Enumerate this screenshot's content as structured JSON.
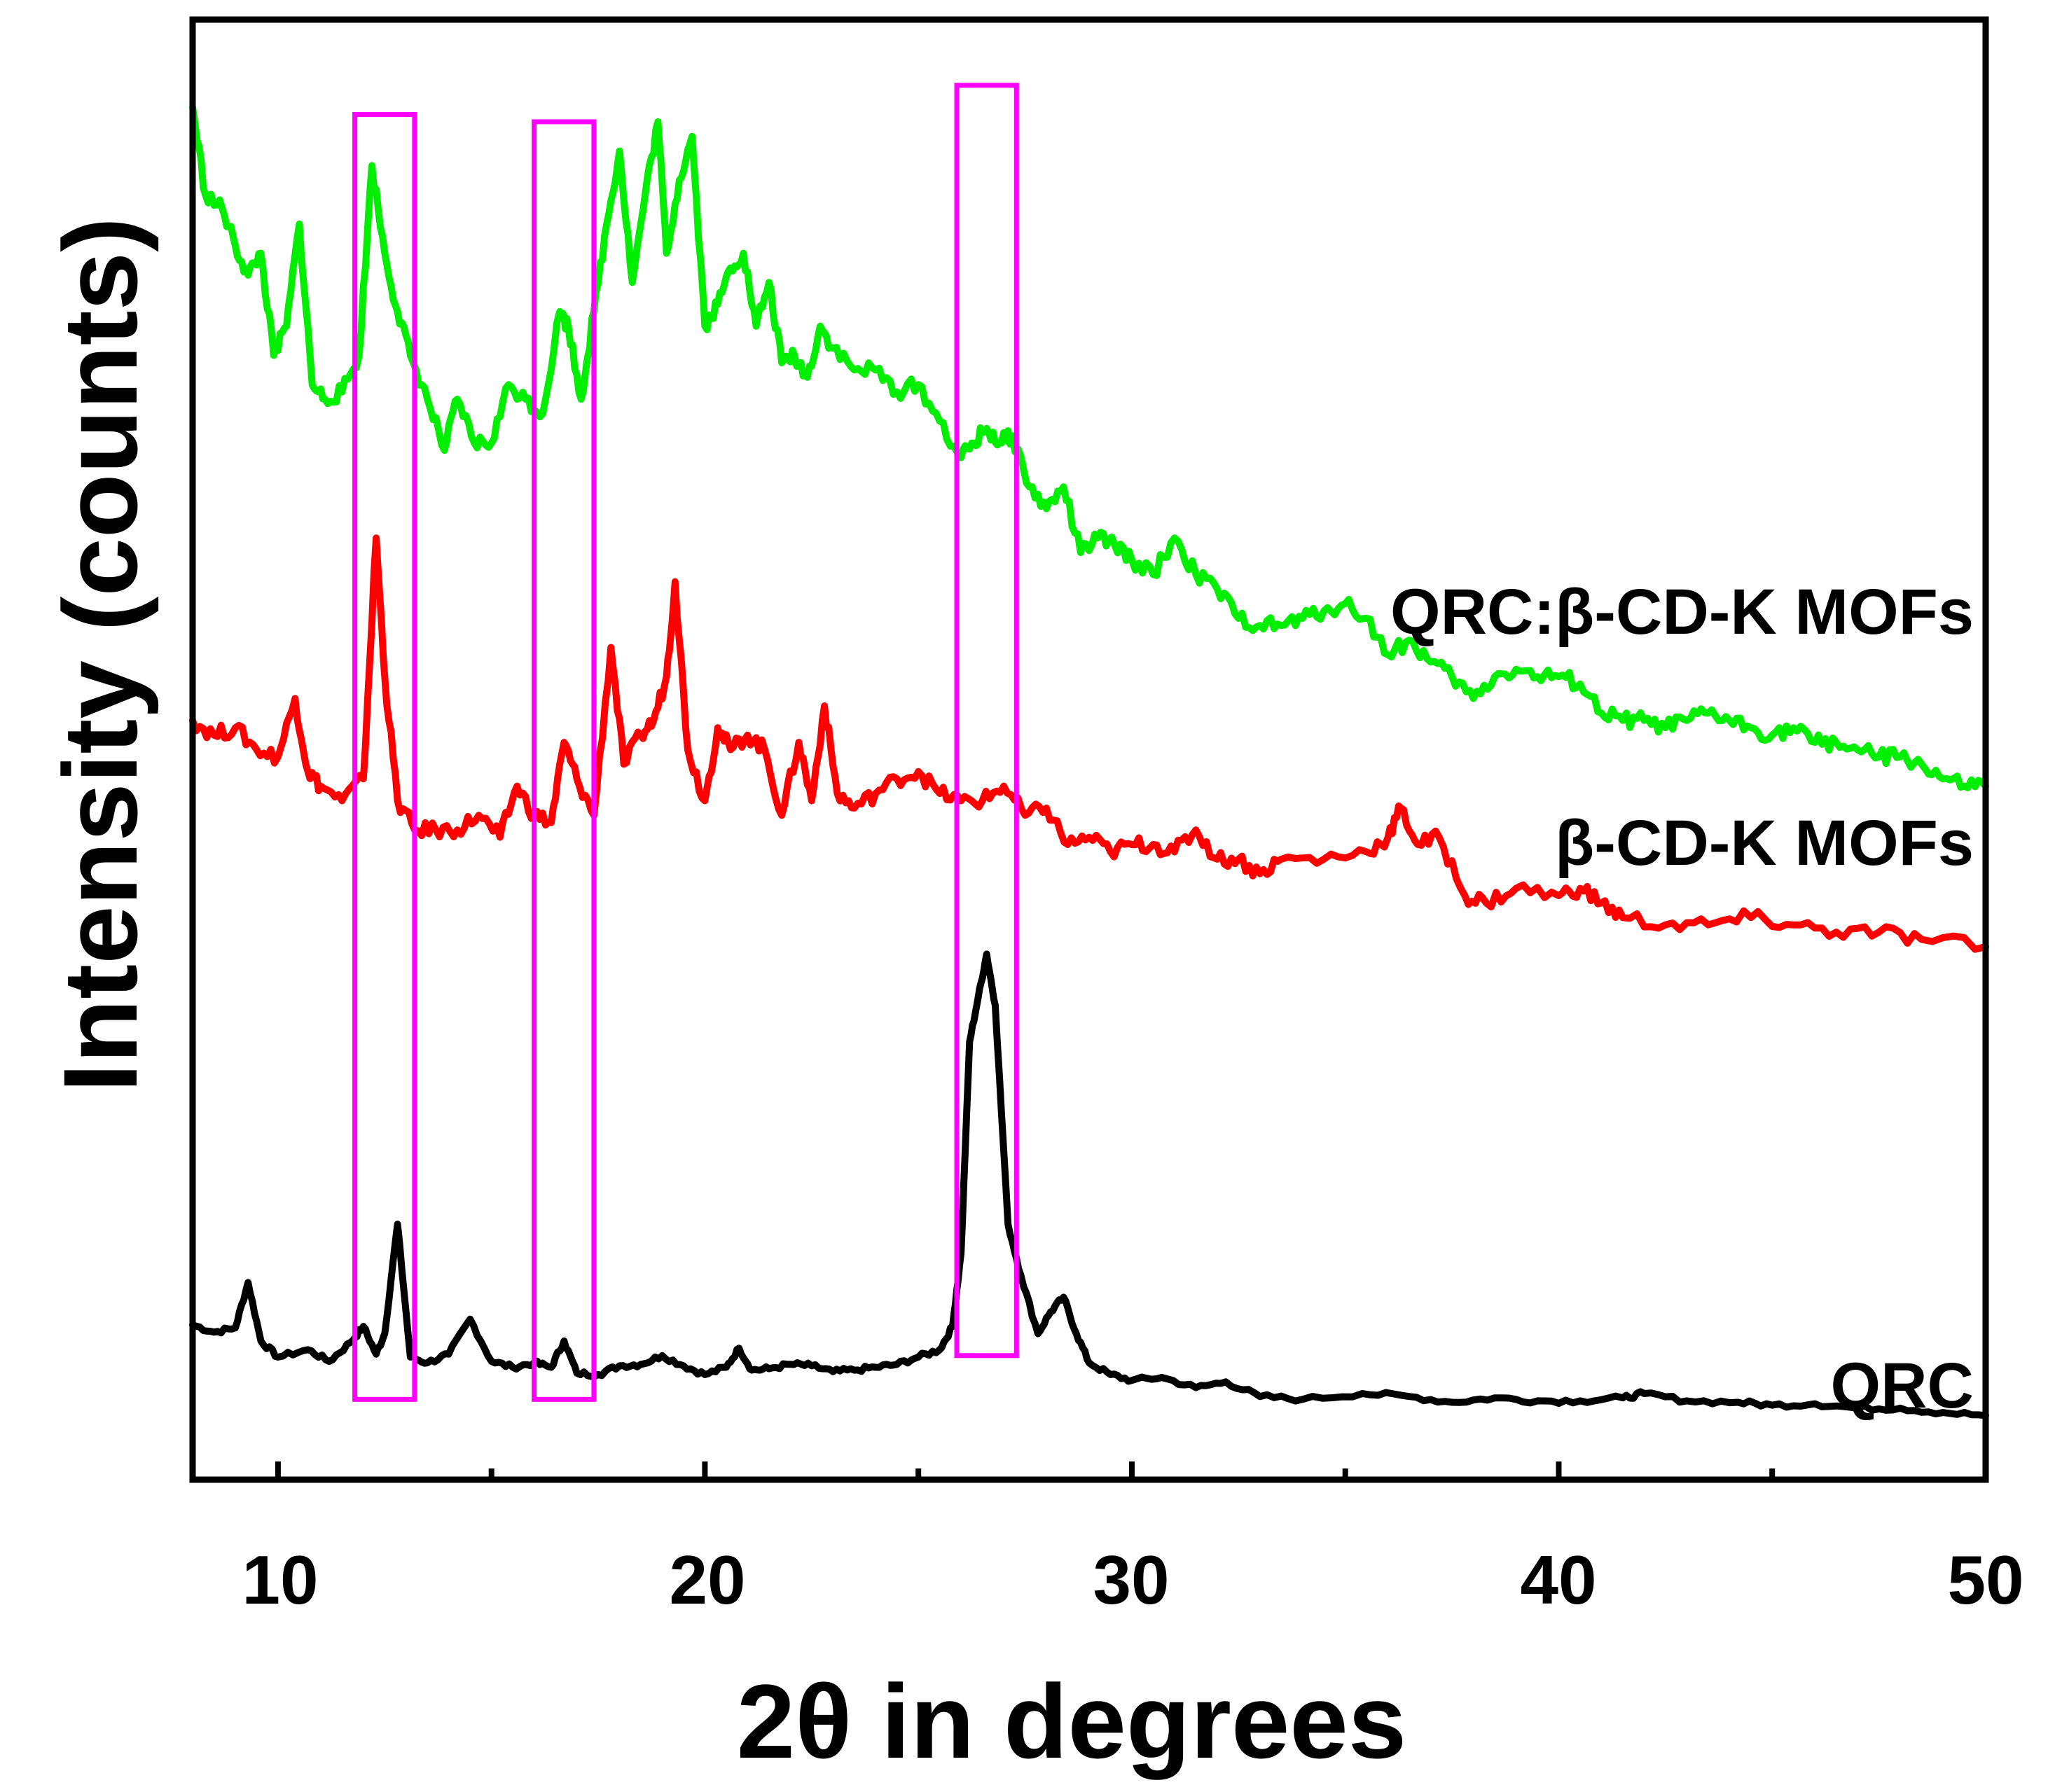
{
  "chart_data": {
    "type": "line",
    "title": "",
    "xlabel": "2θ in degrees",
    "ylabel": "Intensity (counts)",
    "xlim": [
      8,
      50
    ],
    "ylim": [
      0,
      100
    ],
    "xticks": [
      10,
      20,
      30,
      40,
      50
    ],
    "xtick_labels": [
      "10",
      "20",
      "30",
      "40",
      "50"
    ],
    "minor_xticks": [
      15,
      25,
      35,
      45
    ],
    "yticks_shown": false,
    "grid": false,
    "legend": "labels placed at right end of each trace",
    "series": [
      {
        "name": "QRC",
        "label": "QRC",
        "color": "#000000",
        "x": [
          8.0,
          8.5,
          9.0,
          9.3,
          9.6,
          10.0,
          10.7,
          11.2,
          11.7,
          12.0,
          12.3,
          12.5,
          12.8,
          13.1,
          13.5,
          14.0,
          14.5,
          15.0,
          15.5,
          16.0,
          16.4,
          16.7,
          17.0,
          17.5,
          18.0,
          18.5,
          19.0,
          19.5,
          20.0,
          20.5,
          20.8,
          21.1,
          21.5,
          22.0,
          22.5,
          23.0,
          23.5,
          24.0,
          24.5,
          25.0,
          25.5,
          25.8,
          26.0,
          26.2,
          26.4,
          26.6,
          26.8,
          27.1,
          27.4,
          27.8,
          28.1,
          28.4,
          28.7,
          29.0,
          29.5,
          30.0,
          30.7,
          31.5,
          32.2,
          33.0,
          34.0,
          35.4,
          36.5,
          37.5,
          38.5,
          39.5,
          40.5,
          41.5,
          42.0,
          43.0,
          44.2,
          45.0,
          46.0,
          47.0,
          48.0,
          49.0,
          50.0
        ],
        "values": [
          10.6,
          10.1,
          10.4,
          13.5,
          9.5,
          8.4,
          8.9,
          8.1,
          9.4,
          10.5,
          8.6,
          10.0,
          17.5,
          8.4,
          8.0,
          8.6,
          11.0,
          8.1,
          7.7,
          8.0,
          7.7,
          9.5,
          7.3,
          7.2,
          7.8,
          7.9,
          8.5,
          7.8,
          7.2,
          7.7,
          9.0,
          7.5,
          7.6,
          7.9,
          7.8,
          7.4,
          7.5,
          7.7,
          7.9,
          8.4,
          8.9,
          10.5,
          15.5,
          30.0,
          33.0,
          36.0,
          32.5,
          17.5,
          14.0,
          10.0,
          11.5,
          12.5,
          10.0,
          8.0,
          7.2,
          6.8,
          7.0,
          6.3,
          6.7,
          5.7,
          5.5,
          5.9,
          5.7,
          5.3,
          5.6,
          5.4,
          5.4,
          5.6,
          5.9,
          5.4,
          5.3,
          5.1,
          5.2,
          4.9,
          4.9,
          4.6,
          4.4
        ]
      },
      {
        "name": "β-CD-K MOFs",
        "label": "β-CD-K MOFs",
        "color": "#ff0000",
        "x": [
          8.0,
          8.5,
          9.0,
          9.5,
          10.0,
          10.4,
          10.7,
          11.0,
          11.5,
          12.0,
          12.3,
          12.5,
          12.8,
          13.2,
          13.7,
          14.2,
          14.7,
          15.2,
          15.6,
          16.0,
          16.4,
          16.7,
          17.0,
          17.4,
          17.8,
          18.1,
          18.5,
          18.8,
          19.1,
          19.3,
          19.6,
          20.0,
          20.3,
          20.6,
          21.0,
          21.4,
          21.8,
          22.2,
          22.5,
          22.8,
          23.1,
          23.5,
          24.0,
          24.5,
          25.0,
          25.5,
          26.0,
          26.5,
          27.0,
          27.5,
          28.0,
          28.5,
          29.0,
          29.5,
          30.0,
          30.5,
          31.0,
          31.5,
          32.0,
          32.5,
          33.0,
          33.5,
          34.5,
          35.5,
          36.0,
          36.3,
          36.7,
          37.2,
          37.8,
          38.3,
          39.0,
          40.0,
          40.5,
          41.0,
          41.5,
          42.5,
          43.5,
          44.5,
          45.5,
          46.5,
          47.5,
          48.5,
          50.0
        ],
        "values": [
          52.0,
          51.0,
          51.5,
          50.0,
          49.5,
          53.5,
          48.5,
          47.5,
          46.5,
          48.0,
          64.5,
          55.0,
          46.5,
          44.5,
          44.5,
          44.5,
          45.5,
          44.0,
          47.5,
          45.5,
          45.0,
          50.5,
          48.0,
          45.5,
          57.0,
          49.0,
          51.0,
          52.0,
          55.0,
          61.5,
          50.0,
          46.5,
          51.5,
          50.0,
          51.0,
          50.0,
          45.5,
          50.5,
          46.5,
          53.0,
          47.0,
          46.0,
          47.0,
          48.0,
          48.5,
          47.0,
          46.5,
          46.5,
          47.5,
          45.5,
          46.0,
          43.5,
          44.0,
          43.0,
          43.5,
          43.5,
          43.0,
          44.5,
          42.5,
          42.5,
          41.5,
          42.5,
          42.5,
          43.0,
          44.0,
          46.0,
          43.5,
          44.0,
          40.0,
          39.5,
          40.5,
          40.0,
          40.5,
          39.5,
          38.5,
          38.0,
          38.0,
          38.5,
          38.0,
          37.5,
          37.5,
          37.0,
          36.5
        ]
      },
      {
        "name": "QRC:β-CD-K MOFs",
        "label": "QRC:β-CD-K MOFs",
        "color": "#00ee00",
        "x": [
          8.0,
          8.3,
          8.7,
          9.0,
          9.3,
          9.6,
          9.9,
          10.2,
          10.5,
          10.8,
          11.1,
          11.5,
          11.9,
          12.2,
          12.5,
          12.8,
          13.1,
          13.5,
          13.9,
          14.2,
          14.6,
          15.0,
          15.4,
          15.8,
          16.2,
          16.6,
          16.8,
          17.1,
          17.4,
          17.7,
          18.0,
          18.3,
          18.6,
          18.9,
          19.1,
          19.4,
          19.7,
          20.0,
          20.3,
          20.6,
          20.9,
          21.2,
          21.5,
          21.8,
          22.1,
          22.4,
          22.7,
          23.0,
          23.5,
          24.0,
          24.5,
          25.0,
          25.5,
          26.0,
          26.3,
          26.6,
          26.9,
          27.2,
          27.6,
          28.0,
          28.4,
          28.8,
          29.2,
          29.6,
          30.0,
          30.5,
          31.0,
          31.5,
          32.0,
          32.5,
          33.0,
          33.5,
          34.0,
          34.5,
          35.0,
          35.5,
          36.0,
          36.5,
          37.0,
          37.5,
          38.0,
          38.5,
          39.0,
          39.5,
          40.0,
          40.5,
          41.0,
          41.5,
          42.0,
          42.5,
          43.0,
          43.5,
          44.0,
          44.5,
          45.0,
          45.5,
          46.0,
          46.5,
          47.0,
          47.5,
          48.0,
          48.5,
          49.0,
          49.5,
          50.0
        ],
        "values": [
          94.0,
          88.0,
          87.0,
          84.5,
          82.5,
          84.0,
          77.0,
          79.0,
          86.0,
          75.0,
          74.0,
          74.5,
          77.0,
          90.0,
          84.0,
          80.0,
          77.0,
          74.0,
          70.5,
          74.0,
          71.0,
          71.0,
          75.0,
          74.0,
          73.0,
          80.0,
          79.0,
          74.0,
          80.0,
          86.0,
          91.0,
          82.0,
          88.0,
          93.0,
          84.0,
          89.0,
          92.0,
          79.0,
          80.5,
          83.0,
          84.0,
          79.0,
          82.0,
          76.5,
          77.0,
          75.5,
          79.0,
          77.5,
          76.0,
          76.0,
          74.5,
          75.0,
          72.5,
          70.0,
          71.0,
          72.0,
          71.0,
          71.5,
          68.0,
          66.5,
          68.0,
          63.5,
          64.5,
          64.0,
          63.0,
          62.0,
          64.5,
          62.0,
          61.0,
          59.0,
          58.5,
          58.5,
          59.0,
          59.5,
          60.0,
          59.0,
          56.5,
          57.5,
          56.0,
          55.0,
          53.5,
          55.0,
          55.5,
          55.0,
          55.0,
          54.5,
          52.5,
          52.0,
          52.0,
          51.5,
          52.0,
          52.5,
          52.0,
          51.5,
          51.0,
          51.5,
          50.5,
          50.5,
          50.0,
          49.5,
          49.5,
          49.0,
          48.0,
          47.5,
          47.5
        ]
      }
    ],
    "highlight_boxes": [
      {
        "x_range": [
          11.8,
          13.2
        ],
        "y_range": [
          5.5,
          93.5
        ]
      },
      {
        "x_range": [
          16.0,
          17.4
        ],
        "y_range": [
          5.5,
          93.0
        ]
      },
      {
        "x_range": [
          25.9,
          27.3
        ],
        "y_range": [
          8.5,
          95.5
        ]
      }
    ],
    "highlight_color": "#ff00ff"
  }
}
